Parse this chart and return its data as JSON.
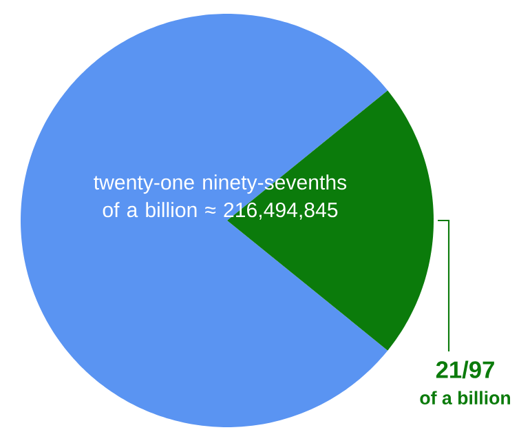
{
  "chart_data": {
    "type": "pie",
    "categories": [
      null,
      "21/97"
    ],
    "values": [
      78.35,
      21.65
    ],
    "colors": [
      "#5a94f2",
      "#0b7b0b"
    ],
    "annotations": [
      "of a billion",
      "twenty-one ninety-sevenths of a billion ≈ 216,494,845"
    ]
  }
}
